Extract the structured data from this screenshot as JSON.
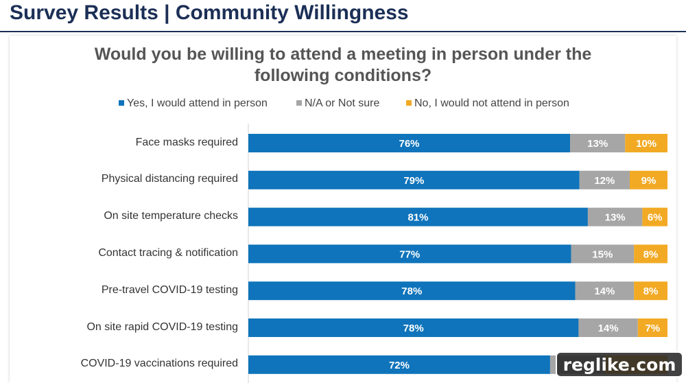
{
  "page": {
    "title": "Survey Results | Community Willingness"
  },
  "colors": {
    "yes": "#0f74bb",
    "na": "#a6a6a6",
    "no": "#f2aa25",
    "title": "#1b2f56"
  },
  "chart_data": {
    "type": "bar",
    "orientation": "horizontal",
    "stacked": true,
    "title": "Would you be willing to attend a meeting in person under the following conditions?",
    "legend_position": "top",
    "xlim": [
      0,
      100
    ],
    "categories": [
      "Face masks required",
      "Physical distancing required",
      "On site temperature checks",
      "Contact tracing & notification",
      "Pre-travel COVID-19 testing",
      "On site rapid COVID-19 testing",
      "COVID-19 vaccinations required"
    ],
    "series": [
      {
        "name": "Yes, I would attend in person",
        "color": "#0f74bb",
        "values": [
          76,
          79,
          81,
          77,
          78,
          78,
          72
        ],
        "labels": [
          "76%",
          "79%",
          "81%",
          "77%",
          "78%",
          "78%",
          "72%"
        ]
      },
      {
        "name": "N/A or Not sure",
        "color": "#a6a6a6",
        "values": [
          13,
          12,
          13,
          15,
          14,
          14,
          13
        ],
        "labels": [
          "13%",
          "12%",
          "13%",
          "15%",
          "14%",
          "14%",
          ""
        ]
      },
      {
        "name": "No, I would not attend in person",
        "color": "#f2aa25",
        "values": [
          10,
          9,
          6,
          8,
          8,
          7,
          15
        ],
        "labels": [
          "10%",
          "9%",
          "6%",
          "8%",
          "8%",
          "7%",
          ""
        ]
      }
    ]
  },
  "watermark": {
    "text": "reglike.com"
  }
}
